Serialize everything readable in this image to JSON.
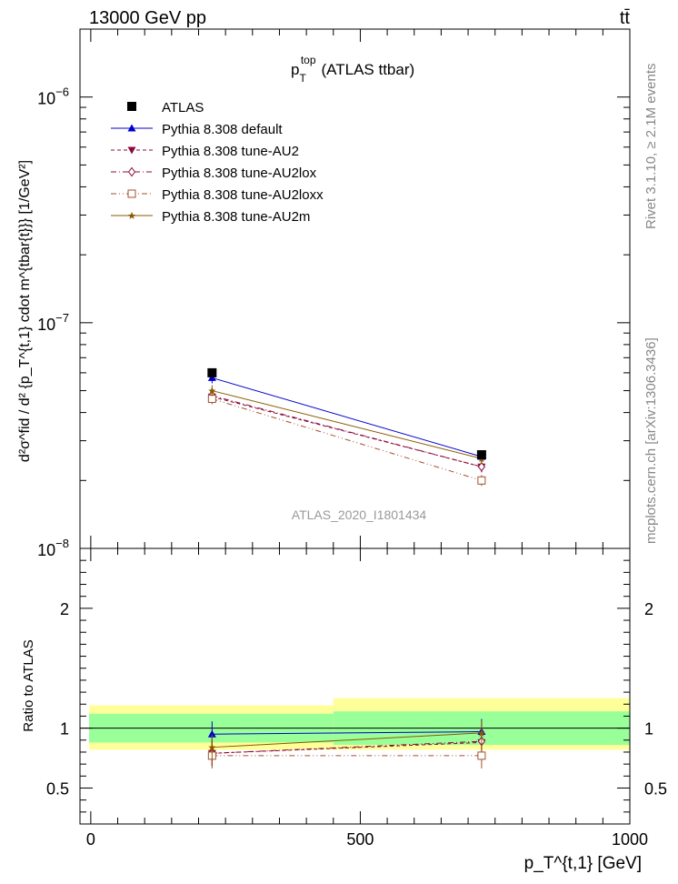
{
  "header": {
    "left": "13000 GeV pp",
    "right": "tt̄"
  },
  "side_labels": {
    "rivet": "Rivet 3.1.10, ≥ 2.1M events",
    "mcplots": "mcplots.cern.ch [arXiv:1306.3436]"
  },
  "chart_data": [
    {
      "panel": "main",
      "type": "line",
      "title": "p_T^top (ATLAS ttbar)",
      "title_parts": {
        "main": "p",
        "sup": "top",
        "sub": "T",
        "rest": "(ATLAS ttbar)"
      },
      "ylabel": "d²σ^fid / d² {p_T^{t,1} cdot m^{tbar{t}}} [1/GeV²]",
      "xlabel": "p_T^{t,1} [GeV]",
      "y_scale": "log",
      "xlim": [
        -20,
        1000
      ],
      "ylim": [
        1e-08,
        2e-06
      ],
      "y_ticks": [
        {
          "value": 1e-08,
          "label": "10",
          "exp": "−8"
        },
        {
          "value": 1e-07,
          "label": "10",
          "exp": "−7"
        },
        {
          "value": 1e-06,
          "label": "10",
          "exp": "−6"
        }
      ],
      "watermark": "ATLAS_2020_I1801434",
      "legend_position": "top-left",
      "x": [
        225,
        725
      ],
      "data": {
        "name": "ATLAS",
        "values": [
          6e-08,
          2.6e-08
        ],
        "color": "#000000",
        "marker": "square"
      },
      "series": [
        {
          "name": "Pythia 8.308 default",
          "values": [
            5.7e-08,
            2.55e-08
          ],
          "color": "#0000cc",
          "marker": "triangle-up",
          "dash": "solid"
        },
        {
          "name": "Pythia 8.308 tune-AU2",
          "values": [
            4.7e-08,
            2.3e-08
          ],
          "color": "#8b0a3c",
          "marker": "triangle-down",
          "dash": "dashed"
        },
        {
          "name": "Pythia 8.308 tune-AU2lox",
          "values": [
            4.75e-08,
            2.3e-08
          ],
          "color": "#8b0a3c",
          "marker": "diamond-open",
          "dash": "dashdot"
        },
        {
          "name": "Pythia 8.308 tune-AU2loxx",
          "values": [
            4.6e-08,
            2e-08
          ],
          "color": "#a0522d",
          "marker": "square-open",
          "dash": "dashdotdot"
        },
        {
          "name": "Pythia 8.308 tune-AU2m",
          "values": [
            5e-08,
            2.5e-08
          ],
          "color": "#8b5a00",
          "marker": "star",
          "dash": "solid"
        }
      ]
    },
    {
      "panel": "ratio",
      "type": "line",
      "ylabel": "Ratio to ATLAS",
      "xlabel": "p_T^{t,1} [GeV]",
      "xlim": [
        -20,
        1000
      ],
      "ylim": [
        0.2,
        2.5
      ],
      "y_ticks": [
        0.5,
        1,
        2
      ],
      "x_ticks": [
        0,
        500,
        1000
      ],
      "bands": {
        "bins": [
          [
            -20,
            450
          ],
          [
            450,
            1000
          ]
        ],
        "inner": [
          [
            0.88,
            1.12
          ],
          [
            0.86,
            1.14
          ]
        ],
        "outer": [
          [
            0.82,
            1.19
          ],
          [
            0.82,
            1.25
          ]
        ],
        "inner_color": "#99ff99",
        "outer_color": "#ffff99"
      },
      "x": [
        225,
        725
      ],
      "series": [
        {
          "name": "Pythia 8.308 default",
          "values": [
            0.95,
            0.97
          ]
        },
        {
          "name": "Pythia 8.308 tune-AU2",
          "values": [
            0.79,
            0.88
          ]
        },
        {
          "name": "Pythia 8.308 tune-AU2lox",
          "values": [
            0.79,
            0.89
          ]
        },
        {
          "name": "Pythia 8.308 tune-AU2loxx",
          "values": [
            0.77,
            0.77
          ]
        },
        {
          "name": "Pythia 8.308 tune-AU2m",
          "values": [
            0.84,
            0.96
          ]
        }
      ]
    }
  ]
}
